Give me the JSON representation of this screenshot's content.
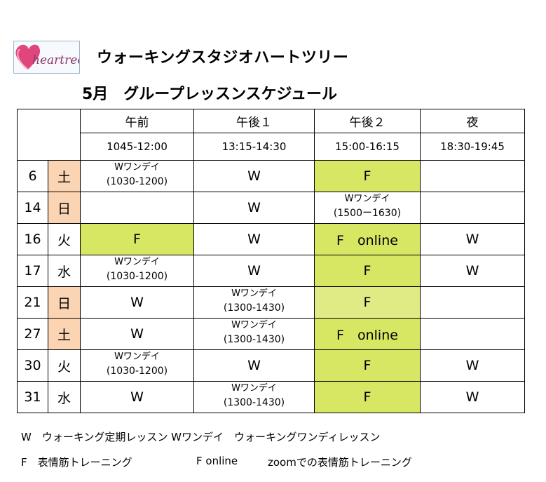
{
  "logo": {
    "text": "heartree"
  },
  "studio_title": "ウォーキングスタジオハートツリー",
  "schedule_title": "5月　グループレッスンスケジュール",
  "header": {
    "periods": [
      "午前",
      "午後１",
      "午後２",
      "夜"
    ],
    "times": [
      "1045-12:00",
      "13:15-14:30",
      "15:00-16:15",
      "18:30-19:45"
    ]
  },
  "rows": [
    {
      "date": "6",
      "weekday": "土",
      "cells": [
        {
          "main": "Wワンデイ",
          "sub": "(1030-1200)"
        },
        {
          "main": "W"
        },
        {
          "main": "F",
          "hl": true
        },
        {
          "main": ""
        }
      ]
    },
    {
      "date": "14",
      "weekday": "日",
      "cells": [
        {
          "main": ""
        },
        {
          "main": "W"
        },
        {
          "main": "Wワンデイ",
          "sub": "(1500ー1630)"
        },
        {
          "main": ""
        }
      ]
    },
    {
      "date": "16",
      "weekday": "火",
      "cells": [
        {
          "main": "F",
          "hl": true
        },
        {
          "main": "W"
        },
        {
          "main": "F　online",
          "hl": true
        },
        {
          "main": "W"
        }
      ]
    },
    {
      "date": "17",
      "weekday": "水",
      "cells": [
        {
          "main": "Wワンデイ",
          "sub": "(1030-1200)"
        },
        {
          "main": "W"
        },
        {
          "main": "F",
          "hl": true
        },
        {
          "main": "W"
        }
      ]
    },
    {
      "date": "21",
      "weekday": "日",
      "cells": [
        {
          "main": "W"
        },
        {
          "main": "Wワンデイ",
          "sub": "(1300-1430)"
        },
        {
          "main": "F",
          "hl": true,
          "light": true
        },
        {
          "main": ""
        }
      ]
    },
    {
      "date": "27",
      "weekday": "土",
      "cells": [
        {
          "main": "W"
        },
        {
          "main": "Wワンデイ",
          "sub": "(1300-1430)"
        },
        {
          "main": "F　online",
          "hl": true
        },
        {
          "main": ""
        }
      ]
    },
    {
      "date": "30",
      "weekday": "火",
      "cells": [
        {
          "main": "Wワンデイ",
          "sub": "(1030-1200)"
        },
        {
          "main": "W"
        },
        {
          "main": "F",
          "hl": true
        },
        {
          "main": "W"
        }
      ]
    },
    {
      "date": "31",
      "weekday": "水",
      "cells": [
        {
          "main": "W"
        },
        {
          "main": "Wワンデイ",
          "sub": "(1300-1430)"
        },
        {
          "main": "F",
          "hl": true
        },
        {
          "main": "W"
        }
      ]
    }
  ],
  "weekend_days": [
    "土",
    "日"
  ],
  "legend": {
    "line1": "W　ウォーキング定期レッスン Wワンデイ　ウォーキングワンディレッスン",
    "line2_a": "F　表情筋トレーニング",
    "line2_b": "F online",
    "line2_c": "zoomでの表情筋トレーニング"
  },
  "colors": {
    "weekend": "#fbd4b4",
    "highlight": "#d7e663",
    "highlight_light": "#e1eb85"
  }
}
